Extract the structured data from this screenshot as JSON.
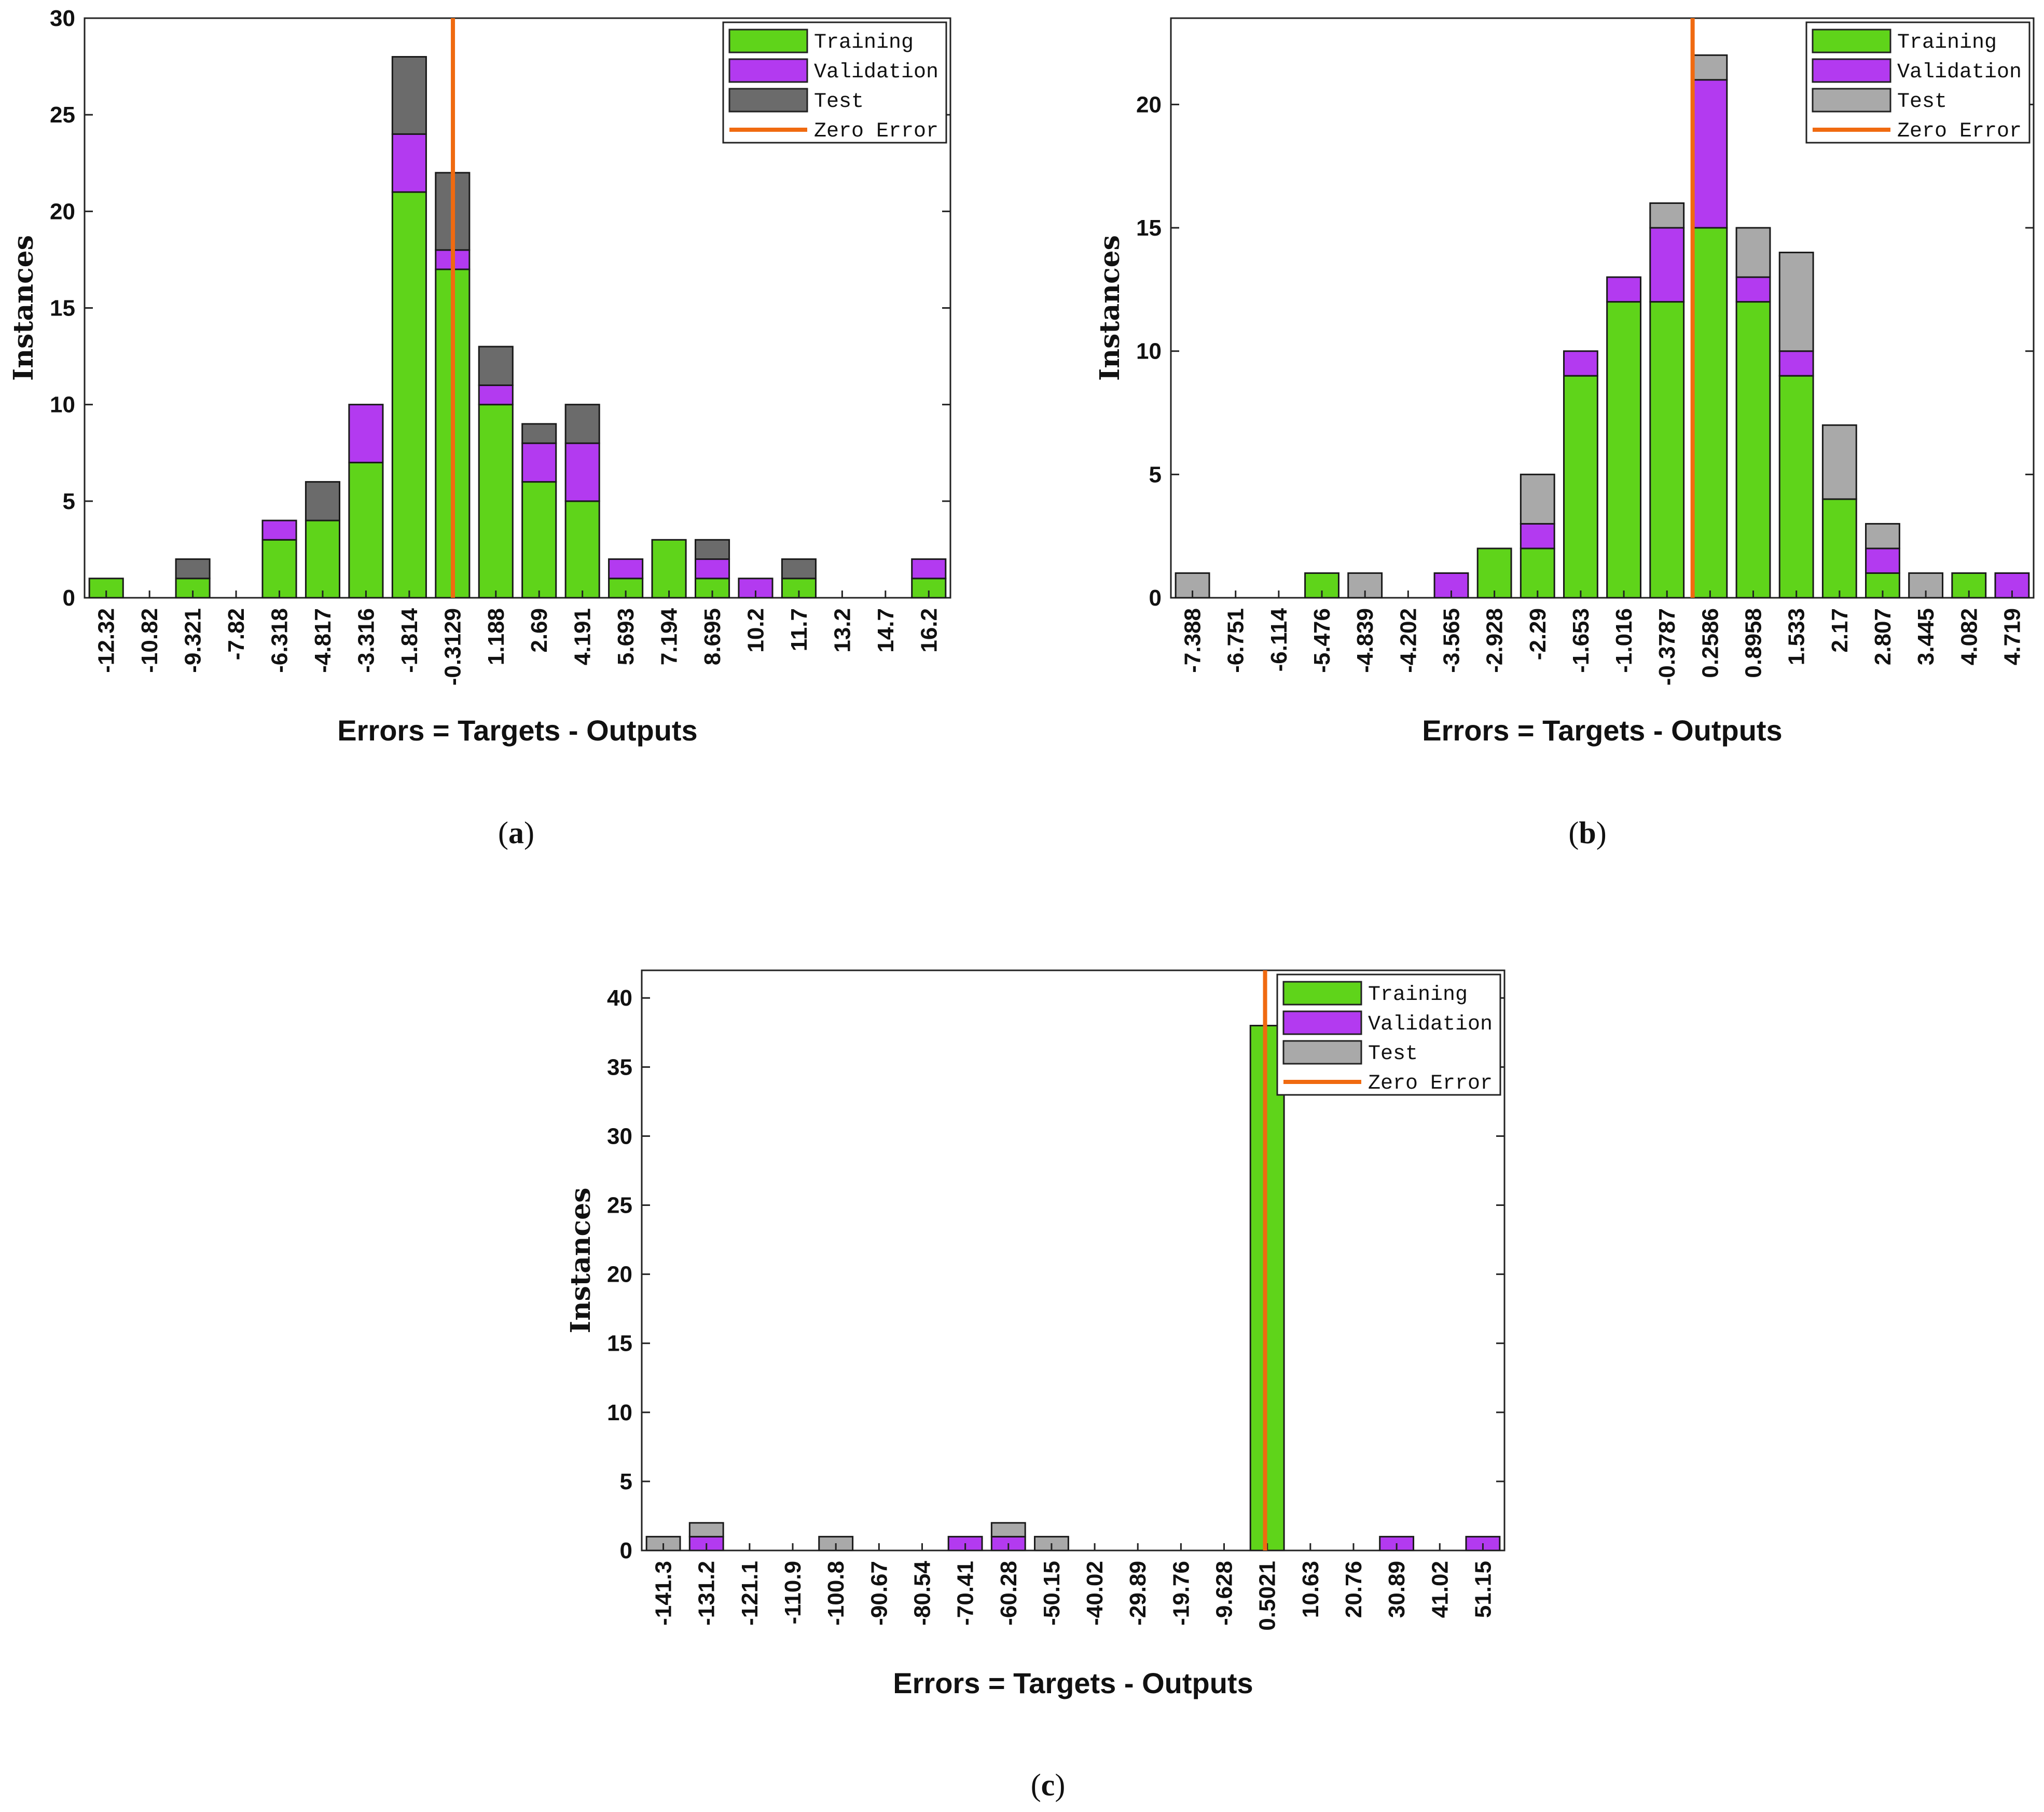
{
  "colors": {
    "training": "#5fd41a",
    "validation": "#b33af0",
    "test_a": "#6b6b6b",
    "test_b": "#a9a9a9",
    "test_c": "#a9a9a9",
    "zero_error": "#f06a10",
    "bar_edge": "#1a1a1a"
  },
  "legend": [
    "Training",
    "Validation",
    "Test",
    "Zero Error"
  ],
  "chart_data": [
    {
      "type": "bar",
      "stacked": true,
      "panel_label": "a",
      "title": "",
      "xlabel": "Errors = Targets - Outputs",
      "ylabel": "Instances",
      "ylim": [
        0,
        30
      ],
      "yticks": [
        0,
        5,
        10,
        15,
        20,
        25,
        30
      ],
      "zero_error_x": -0.3,
      "test_color_key": "test_a",
      "categories": [
        "-12.32",
        "-10.82",
        "-9.321",
        "-7.82",
        "-6.318",
        "-4.817",
        "-3.316",
        "-1.814",
        "-0.3129",
        "1.188",
        "2.69",
        "4.191",
        "5.693",
        "7.194",
        "8.695",
        "10.2",
        "11.7",
        "13.2",
        "14.7",
        "16.2"
      ],
      "series": [
        {
          "name": "Training",
          "values": [
            1,
            0,
            1,
            0,
            3,
            4,
            7,
            21,
            17,
            10,
            6,
            5,
            1,
            3,
            1,
            0,
            1,
            0,
            0,
            1
          ]
        },
        {
          "name": "Validation",
          "values": [
            0,
            0,
            0,
            0,
            1,
            0,
            3,
            3,
            1,
            1,
            2,
            3,
            1,
            0,
            1,
            1,
            0,
            0,
            0,
            1
          ]
        },
        {
          "name": "Test",
          "values": [
            0,
            0,
            1,
            0,
            0,
            2,
            0,
            4,
            4,
            2,
            1,
            2,
            0,
            0,
            1,
            0,
            1,
            0,
            0,
            0
          ]
        }
      ]
    },
    {
      "type": "bar",
      "stacked": true,
      "panel_label": "b",
      "title": "",
      "xlabel": "Errors = Targets - Outputs",
      "ylabel": "Instances",
      "ylim": [
        0,
        23.5
      ],
      "yticks": [
        0,
        5,
        10,
        15,
        20
      ],
      "zero_error_x": 0.0,
      "test_color_key": "test_b",
      "categories": [
        "-7.388",
        "-6.751",
        "-6.114",
        "-5.476",
        "-4.839",
        "-4.202",
        "-3.565",
        "-2.928",
        "-2.29",
        "-1.653",
        "-1.016",
        "-0.3787",
        "0.2586",
        "0.8958",
        "1.533",
        "2.17",
        "2.807",
        "3.445",
        "4.082",
        "4.719"
      ],
      "series": [
        {
          "name": "Training",
          "values": [
            0,
            0,
            0,
            1,
            0,
            0,
            0,
            2,
            2,
            9,
            12,
            12,
            15,
            12,
            9,
            4,
            1,
            0,
            1,
            0
          ]
        },
        {
          "name": "Validation",
          "values": [
            0,
            0,
            0,
            0,
            0,
            0,
            1,
            0,
            1,
            1,
            1,
            3,
            6,
            1,
            1,
            0,
            1,
            0,
            0,
            1
          ]
        },
        {
          "name": "Test",
          "values": [
            1,
            0,
            0,
            0,
            1,
            0,
            0,
            0,
            2,
            0,
            0,
            1,
            1,
            2,
            4,
            3,
            1,
            1,
            0,
            0
          ]
        }
      ]
    },
    {
      "type": "bar",
      "stacked": true,
      "panel_label": "c",
      "title": "",
      "xlabel": "Errors = Targets - Outputs",
      "ylabel": "Instances",
      "ylim": [
        0,
        42
      ],
      "yticks": [
        0,
        5,
        10,
        15,
        20,
        25,
        30,
        35,
        40
      ],
      "zero_error_x": 0.0,
      "test_color_key": "test_c",
      "categories": [
        "-141.3",
        "-131.2",
        "-121.1",
        "-110.9",
        "-100.8",
        "-90.67",
        "-80.54",
        "-70.41",
        "-60.28",
        "-50.15",
        "-40.02",
        "-29.89",
        "-19.76",
        "-9.628",
        "0.5021",
        "10.63",
        "20.76",
        "30.89",
        "41.02",
        "51.15"
      ],
      "series": [
        {
          "name": "Training",
          "values": [
            0,
            0,
            0,
            0,
            0,
            0,
            0,
            0,
            0,
            0,
            0,
            0,
            0,
            0,
            38,
            0,
            0,
            0,
            0,
            0
          ]
        },
        {
          "name": "Validation",
          "values": [
            0,
            1,
            0,
            0,
            0,
            0,
            0,
            1,
            1,
            0,
            0,
            0,
            0,
            0,
            0,
            0,
            0,
            1,
            0,
            1
          ]
        },
        {
          "name": "Test",
          "values": [
            1,
            1,
            0,
            0,
            1,
            0,
            0,
            0,
            1,
            1,
            0,
            0,
            0,
            0,
            0,
            0,
            0,
            0,
            0,
            0
          ]
        }
      ]
    }
  ]
}
